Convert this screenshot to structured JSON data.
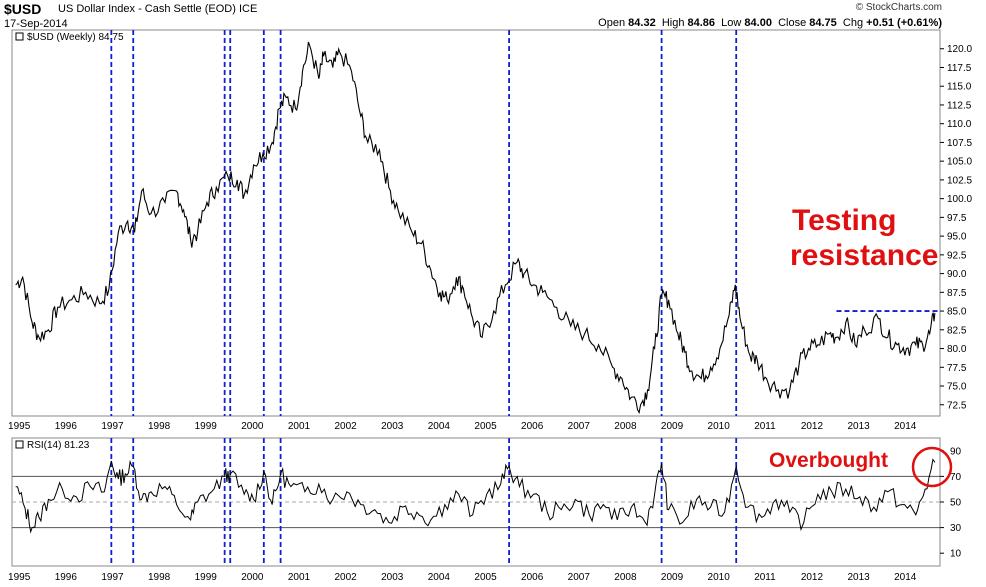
{
  "header": {
    "symbol": "$USD",
    "description": "US Dollar Index - Cash Settle (EOD) ICE",
    "date": "17-Sep-2014",
    "copyright": "© StockCharts.com",
    "open_label": "Open",
    "open": "84.32",
    "high_label": "High",
    "high": "84.86",
    "low_label": "Low",
    "low": "84.00",
    "close_label": "Close",
    "close": "84.75",
    "chg_label": "Chg",
    "chg": "+0.51 (+0.61%)"
  },
  "chart_data": [
    {
      "type": "line",
      "legend": "$USD (Weekly) 84.75",
      "ylim": [
        71,
        122.5
      ],
      "yticks": [
        "120.0",
        "117.5",
        "115.0",
        "112.5",
        "110.0",
        "107.5",
        "105.0",
        "102.5",
        "100.0",
        "97.5",
        "95.0",
        "92.5",
        "90.0",
        "87.5",
        "85.0",
        "82.5",
        "80.0",
        "77.5",
        "75.0",
        "72.5"
      ],
      "x_labels": [
        "1995",
        "1996",
        "1997",
        "1998",
        "1999",
        "2000",
        "2001",
        "2002",
        "2003",
        "2004",
        "2005",
        "2006",
        "2007",
        "2008",
        "2009",
        "2010",
        "2011",
        "2012",
        "2013",
        "2014"
      ],
      "x": [
        1995.0,
        1995.15,
        1995.35,
        1995.5,
        1995.7,
        1995.9,
        1996.2,
        1996.5,
        1996.8,
        1997.0,
        1997.2,
        1997.4,
        1997.55,
        1997.7,
        1997.9,
        1998.2,
        1998.45,
        1998.6,
        1998.75,
        1998.9,
        1999.1,
        1999.3,
        1999.55,
        1999.75,
        1999.9,
        2000.1,
        2000.3,
        2000.5,
        2000.65,
        2000.8,
        2001.0,
        2001.15,
        2001.3,
        2001.5,
        2001.6,
        2001.8,
        2001.95,
        2002.2,
        2002.4,
        2002.55,
        2002.8,
        2003.0,
        2003.2,
        2003.5,
        2003.7,
        2003.9,
        2004.1,
        2004.25,
        2004.45,
        2004.6,
        2004.8,
        2005.0,
        2005.25,
        2005.5,
        2005.75,
        2005.9,
        2006.1,
        2006.3,
        2006.6,
        2006.9,
        2007.2,
        2007.5,
        2007.8,
        2008.0,
        2008.2,
        2008.4,
        2008.55,
        2008.7,
        2008.85,
        2009.0,
        2009.2,
        2009.35,
        2009.5,
        2009.7,
        2009.9,
        2010.1,
        2010.3,
        2010.43,
        2010.55,
        2010.75,
        2010.9,
        2011.1,
        2011.35,
        2011.6,
        2011.8,
        2012.0,
        2012.2,
        2012.45,
        2012.6,
        2012.8,
        2013.0,
        2013.2,
        2013.5,
        2013.7,
        2013.9,
        2014.1,
        2014.3,
        2014.45,
        2014.6,
        2014.71
      ],
      "y": [
        88.5,
        89.5,
        83.5,
        81.5,
        82.5,
        85.5,
        86.5,
        87.5,
        86.0,
        88.0,
        95.5,
        97.0,
        95.5,
        101.0,
        98.0,
        99.5,
        101.0,
        98.5,
        94.5,
        95.5,
        99.5,
        101.5,
        103.0,
        102.5,
        100.5,
        104.5,
        106.0,
        107.5,
        112.0,
        113.5,
        112.0,
        117.0,
        120.5,
        116.0,
        119.0,
        117.5,
        119.5,
        117.0,
        111.0,
        107.5,
        106.5,
        101.5,
        98.5,
        95.5,
        94.0,
        90.5,
        87.5,
        86.5,
        89.5,
        88.0,
        84.0,
        81.5,
        85.0,
        88.5,
        91.5,
        90.0,
        88.5,
        87.5,
        85.5,
        83.0,
        82.0,
        80.5,
        77.5,
        76.0,
        73.5,
        72.5,
        74.5,
        80.0,
        87.0,
        86.5,
        82.0,
        79.5,
        77.0,
        76.0,
        77.5,
        80.0,
        84.5,
        88.5,
        83.5,
        79.0,
        78.5,
        76.0,
        74.5,
        74.5,
        78.0,
        80.0,
        80.5,
        82.0,
        81.5,
        83.5,
        80.5,
        82.5,
        84.0,
        81.5,
        80.5,
        80.0,
        80.5,
        80.5,
        82.0,
        84.75
      ],
      "series_name": "$USD (Weekly)",
      "resistance_level": 85.0,
      "annotation": [
        "Testing",
        "resistance"
      ],
      "vlines": [
        1997.05,
        1997.52,
        1999.48,
        1999.6,
        2000.32,
        2000.68,
        2005.58,
        2008.85,
        2010.45
      ]
    },
    {
      "type": "line",
      "legend": "RSI(14) 81.23",
      "ylim": [
        0,
        100
      ],
      "yticks": [
        "90",
        "70",
        "50",
        "30",
        "10"
      ],
      "reference_lines": [
        70,
        50,
        30
      ],
      "x_labels": [
        "1995",
        "1996",
        "1997",
        "1998",
        "1999",
        "2000",
        "2001",
        "2002",
        "2003",
        "2004",
        "2005",
        "2006",
        "2007",
        "2008",
        "2009",
        "2010",
        "2011",
        "2012",
        "2013",
        "2014"
      ],
      "x": [
        1995.0,
        1995.2,
        1995.35,
        1995.5,
        1995.7,
        1996.0,
        1996.3,
        1996.6,
        1996.9,
        1997.05,
        1997.2,
        1997.35,
        1997.52,
        1997.7,
        1997.9,
        1998.2,
        1998.45,
        1998.75,
        1998.9,
        1999.2,
        1999.48,
        1999.6,
        1999.9,
        2000.1,
        2000.32,
        2000.5,
        2000.68,
        2000.9,
        2001.2,
        2001.5,
        2001.8,
        2002.1,
        2002.4,
        2002.7,
        2003.0,
        2003.3,
        2003.6,
        2003.9,
        2004.2,
        2004.5,
        2004.8,
        2005.1,
        2005.4,
        2005.58,
        2005.8,
        2006.1,
        2006.4,
        2006.7,
        2007.0,
        2007.3,
        2007.6,
        2007.9,
        2008.2,
        2008.5,
        2008.7,
        2008.85,
        2009.0,
        2009.3,
        2009.6,
        2009.9,
        2010.2,
        2010.45,
        2010.7,
        2011.0,
        2011.3,
        2011.6,
        2011.9,
        2012.2,
        2012.5,
        2012.8,
        2013.1,
        2013.4,
        2013.7,
        2014.0,
        2014.3,
        2014.5,
        2014.71
      ],
      "y": [
        62,
        45,
        30,
        38,
        52,
        60,
        54,
        62,
        58,
        82,
        68,
        72,
        78,
        52,
        58,
        62,
        48,
        36,
        50,
        58,
        70,
        72,
        56,
        52,
        74,
        48,
        72,
        62,
        58,
        64,
        52,
        58,
        48,
        44,
        34,
        46,
        42,
        36,
        48,
        56,
        40,
        56,
        64,
        78,
        62,
        56,
        42,
        44,
        52,
        40,
        48,
        36,
        46,
        34,
        56,
        80,
        44,
        34,
        52,
        46,
        42,
        78,
        46,
        38,
        52,
        42,
        34,
        56,
        58,
        60,
        54,
        46,
        58,
        48,
        40,
        60,
        81
      ],
      "series_name": "RSI(14)",
      "annotation": "Overbought",
      "vlines": [
        1997.05,
        1997.52,
        1999.48,
        1999.6,
        2000.32,
        2000.68,
        2005.58,
        2008.85,
        2010.45
      ]
    }
  ]
}
